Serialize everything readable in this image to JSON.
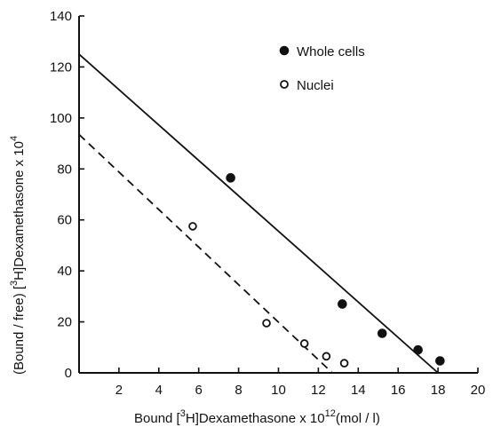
{
  "chart_data": {
    "type": "scatter",
    "xlim": [
      0,
      20
    ],
    "ylim": [
      0,
      140
    ],
    "x_ticks": [
      2,
      4,
      6,
      8,
      10,
      12,
      14,
      16,
      18,
      20
    ],
    "y_ticks": [
      0,
      20,
      40,
      60,
      80,
      100,
      120,
      140
    ],
    "xlabel": {
      "prefix": "Bound ",
      "bracket_open": "[",
      "isotope_sup": "3",
      "isotope": "H",
      "bracket_close": "]",
      "compound": "Dexamethasone x 10",
      "exp_sup": "12",
      "unit": "(mol / l)"
    },
    "ylabel": {
      "prefix": "(Bound / free) ",
      "bracket_open": "[",
      "isotope_sup": "3",
      "isotope": "H",
      "bracket_close": "]",
      "compound": "Dexamethasone x 10",
      "exp_sup": "4"
    },
    "grid": false,
    "legend_position": "top-right",
    "series": [
      {
        "name": "Whole cells",
        "marker": "filled-circle",
        "color": "#111111",
        "points": [
          {
            "x": 7.6,
            "y": 76.5
          },
          {
            "x": 13.2,
            "y": 27
          },
          {
            "x": 15.2,
            "y": 15.5
          },
          {
            "x": 17.0,
            "y": 9
          },
          {
            "x": 18.1,
            "y": 4.7
          }
        ],
        "fit_line": {
          "style": "solid",
          "x": [
            0,
            18.0
          ],
          "y": [
            125,
            0
          ]
        }
      },
      {
        "name": "Nuclei",
        "marker": "open-circle",
        "color": "#111111",
        "points": [
          {
            "x": 5.7,
            "y": 57.5
          },
          {
            "x": 9.4,
            "y": 19.5
          },
          {
            "x": 11.3,
            "y": 11.5
          },
          {
            "x": 12.4,
            "y": 6.5
          },
          {
            "x": 13.3,
            "y": 3.8
          }
        ],
        "fit_line": {
          "style": "dashed",
          "x": [
            0,
            12.7
          ],
          "y": [
            93.5,
            0
          ]
        }
      }
    ]
  }
}
